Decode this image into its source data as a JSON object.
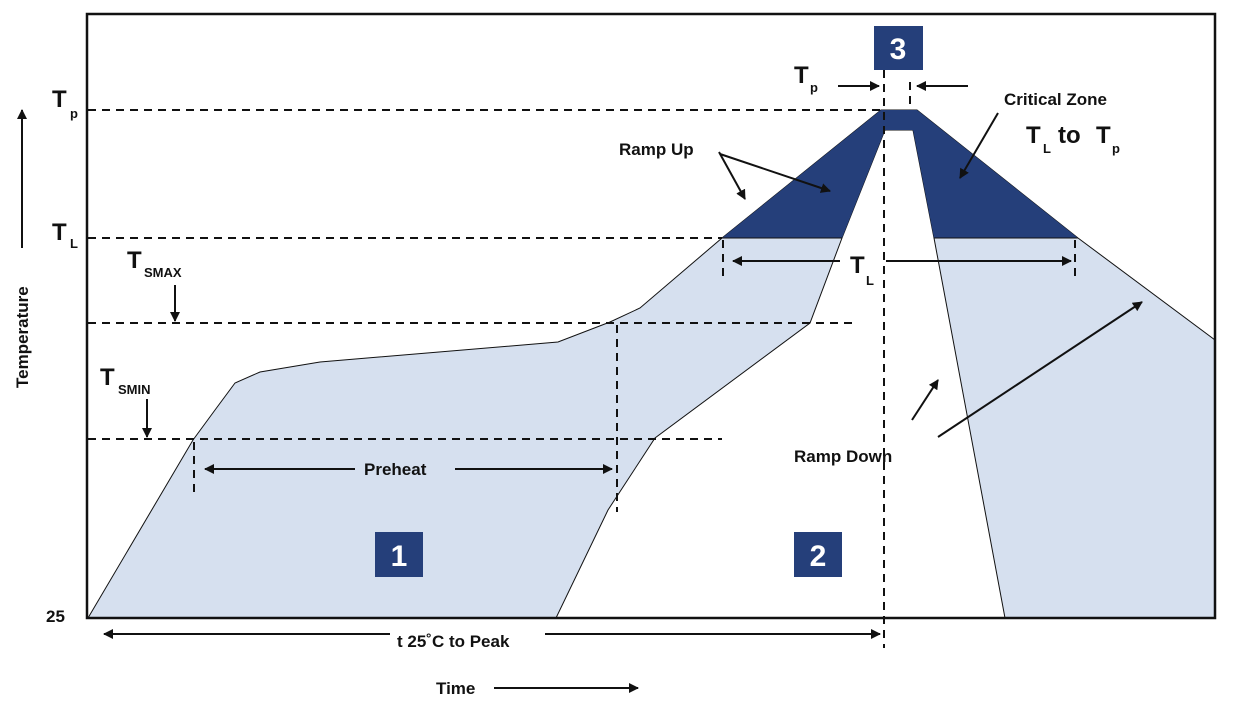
{
  "axes": {
    "y_label": "Temperature",
    "x_label": "Time",
    "y_origin": "25"
  },
  "levels": {
    "tp": {
      "main": "T",
      "sub": "p"
    },
    "tl": {
      "main": "T",
      "sub": "L"
    },
    "tsmax": {
      "main": "T",
      "sub": "SMAX"
    },
    "tsmin": {
      "main": "T",
      "sub": "SMIN"
    }
  },
  "annotations": {
    "preheat": "Preheat",
    "ramp_up": "Ramp Up",
    "ramp_down": "Ramp Down",
    "critical_zone": "Critical Zone",
    "critical_range": {
      "t1": "T",
      "s1": "L",
      "mid": "to",
      "t2": "T",
      "s2": "p"
    },
    "tl_span": {
      "main": "T",
      "sub": "L"
    },
    "tp_span": {
      "main": "T",
      "sub": "p"
    },
    "time_to_peak": "t 25˚C to Peak"
  },
  "zones": [
    "1",
    "2",
    "3"
  ],
  "colors": {
    "band": "#d6e0ef",
    "critical": "#253f7a",
    "zone_box": "#253f7a"
  }
}
